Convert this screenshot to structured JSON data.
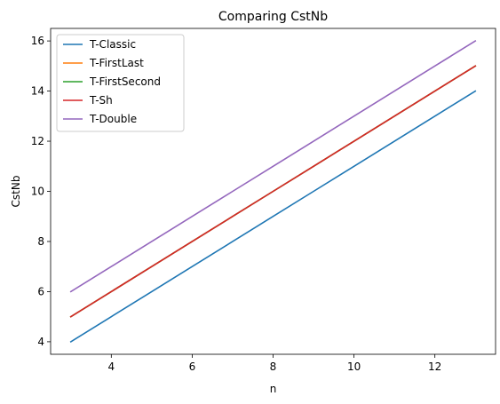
{
  "chart_data": {
    "type": "line",
    "title": "Comparing CstNb",
    "xlabel": "n",
    "ylabel": "CstNb",
    "x": [
      3,
      4,
      5,
      6,
      7,
      8,
      9,
      10,
      11,
      12,
      13
    ],
    "xlim": [
      2.5,
      13.5
    ],
    "ylim": [
      3.5,
      16.5
    ],
    "xticks": [
      4,
      6,
      8,
      10,
      12
    ],
    "yticks": [
      4,
      6,
      8,
      10,
      12,
      14,
      16
    ],
    "grid": false,
    "legend_position": "top-left",
    "series": [
      {
        "name": "T-Classic",
        "color": "#1f77b4",
        "values": [
          4,
          5,
          6,
          7,
          8,
          9,
          10,
          11,
          12,
          13,
          14
        ]
      },
      {
        "name": "T-FirstLast",
        "color": "#ff7f0e",
        "values": [
          5,
          6,
          7,
          8,
          9,
          10,
          11,
          12,
          13,
          14,
          15
        ]
      },
      {
        "name": "T-FirstSecond",
        "color": "#2ca02c",
        "values": [
          5,
          6,
          7,
          8,
          9,
          10,
          11,
          12,
          13,
          14,
          15
        ]
      },
      {
        "name": "T-Sh",
        "color": "#d62728",
        "values": [
          5,
          6,
          7,
          8,
          9,
          10,
          11,
          12,
          13,
          14,
          15
        ]
      },
      {
        "name": "T-Double",
        "color": "#9467bd",
        "values": [
          6,
          7,
          8,
          9,
          10,
          11,
          12,
          13,
          14,
          15,
          16
        ]
      }
    ]
  }
}
